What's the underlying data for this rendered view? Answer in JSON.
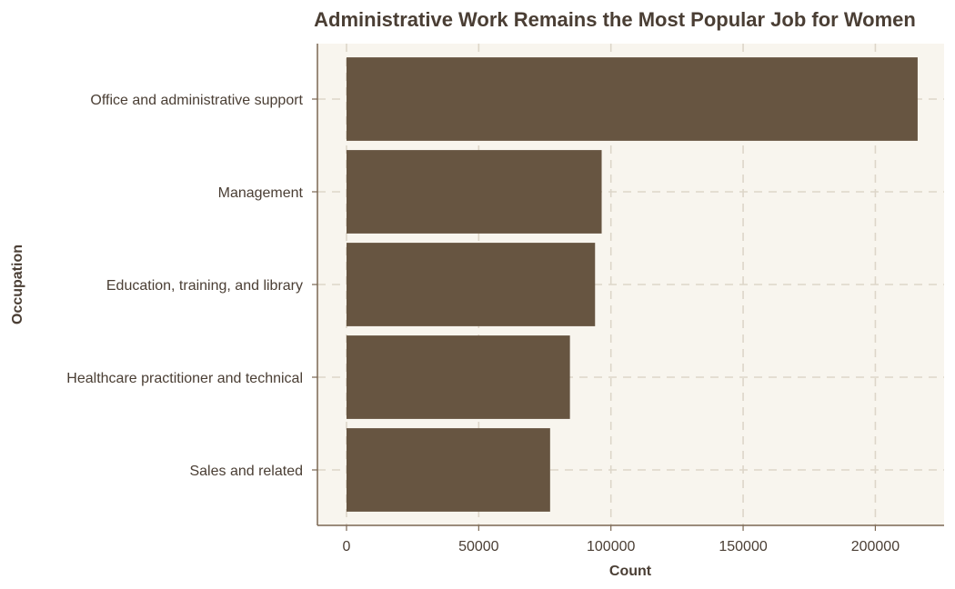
{
  "chart_data": {
    "type": "bar",
    "orientation": "horizontal",
    "title": "Administrative Work Remains the Most Popular Job for Women",
    "xlabel": "Count",
    "ylabel": "Occupation",
    "categories": [
      "Office and administrative support",
      "Management",
      "Education, training, and library",
      "Healthcare practitioner and technical",
      "Sales and related"
    ],
    "values": [
      216000,
      96500,
      94000,
      84500,
      77000
    ],
    "xlim": [
      -11000,
      226000
    ],
    "xticks": [
      0,
      50000,
      100000,
      150000,
      200000
    ],
    "xtick_labels": [
      "0",
      "50000",
      "100000",
      "150000",
      "200000"
    ],
    "grid": true,
    "legend": "none",
    "colors": {
      "bar": "#675541",
      "panel": "#f8f5ee",
      "grid": "#ddd6c9",
      "axis": "#7a6652",
      "text": "#4a3e34"
    }
  }
}
